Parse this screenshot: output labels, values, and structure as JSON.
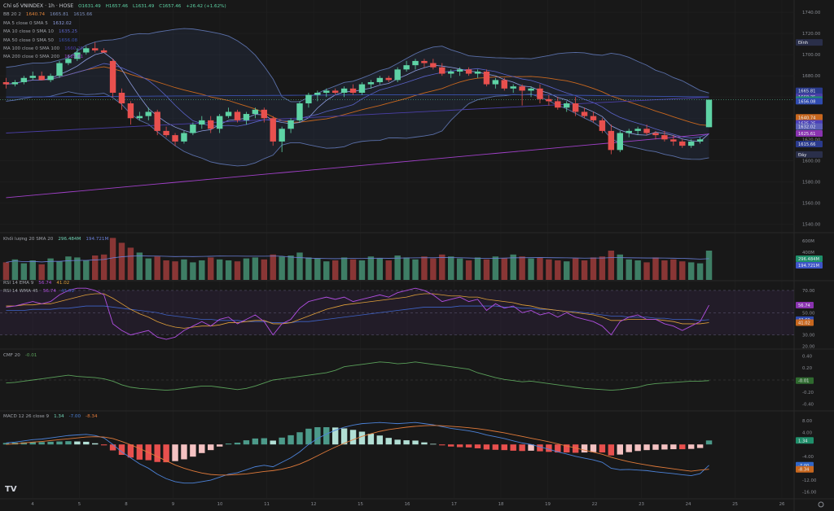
{
  "title_label": "Chỉ số VNINDEX · 1h · HOSE",
  "ohlc": {
    "o": "O1631.49",
    "h": "H1657.46",
    "l": "L1631.49",
    "c": "C1657.46",
    "chg": "+26.42 (+1.62%)"
  },
  "legends": [
    {
      "label": "BB 20 2",
      "vals": [
        {
          "t": "1640.74",
          "c": "#e0833a"
        },
        {
          "t": "1665.81",
          "c": "#7d8fbd"
        },
        {
          "t": "1615.66",
          "c": "#7d8fbd"
        }
      ]
    },
    {
      "label": "MA 5 close 0 SMA 5",
      "vals": [
        {
          "t": "1632.02",
          "c": "#8e9de0"
        }
      ]
    },
    {
      "label": "MA 10 close 0 SMA 10",
      "vals": [
        {
          "t": "1635.25",
          "c": "#5a63c8"
        }
      ]
    },
    {
      "label": "MA 50 close 0 SMA 50",
      "vals": [
        {
          "t": "1656.08",
          "c": "#3b52b0"
        }
      ]
    },
    {
      "label": "MA 100 close 0 SMA 100",
      "vals": [
        {
          "t": "1660.25",
          "c": "#4b3fa8"
        }
      ]
    },
    {
      "label": "MA 200 close 0 SMA 200",
      "vals": [
        {
          "t": "1625.61",
          "c": "#a040c8"
        }
      ]
    }
  ],
  "vol_legend": {
    "label": "Khối lượng 20 SMA 20",
    "vals": [
      {
        "t": "296.484M",
        "c": "#6fd3b5"
      },
      {
        "t": "194.721M",
        "c": "#6a7fd8"
      }
    ]
  },
  "rsi_legend": {
    "lines": [
      {
        "label": "RSI 14 EMA 9",
        "vals": [
          {
            "t": "56.74",
            "c": "#b04ee0"
          },
          {
            "t": "41.02",
            "c": "#e0a03a"
          }
        ]
      },
      {
        "label": "RSI 14 WMA 45",
        "vals": [
          {
            "t": "56.74",
            "c": "#b04ee0"
          },
          {
            "t": "43.69",
            "c": "#3f63c8"
          }
        ]
      }
    ]
  },
  "cmf_legend": {
    "label": "CMF 20",
    "vals": [
      {
        "t": "-0.01",
        "c": "#5aa05a"
      }
    ]
  },
  "macd_legend": {
    "label": "MACD 12 26 close 9",
    "vals": [
      {
        "t": "1.34",
        "c": "#6fd3b5"
      },
      {
        "t": "-7.00",
        "c": "#4c82d8"
      },
      {
        "t": "-8.34",
        "c": "#e07a3a"
      }
    ]
  },
  "tv_logo": "TV",
  "colors": {
    "up": "#5ed3a5",
    "down": "#e8504e",
    "bg": "#181818",
    "grid": "#262626"
  },
  "chart_data": {
    "type": "candlestick",
    "x_ticks": [
      "4",
      "5",
      "8",
      "9",
      "10",
      "11",
      "12",
      "15",
      "16",
      "17",
      "18",
      "19",
      "22",
      "23",
      "24",
      "25",
      "26"
    ],
    "price_axis": {
      "ticks": [
        1740,
        1720,
        1700,
        1680,
        1660,
        1640,
        1620,
        1600,
        1580,
        1560,
        1540
      ],
      "range": [
        1535,
        1750
      ]
    },
    "price_markers": [
      {
        "t": "Đỉnh",
        "v": 1711.49,
        "c": "#2a2f4a"
      },
      {
        "t": "1665.81",
        "v": 1665.81,
        "c": "#2a3a8c"
      },
      {
        "t": "1660.25",
        "v": 1660.25,
        "c": "#4b3fa8"
      },
      {
        "t": "1657.46",
        "v": 1657.46,
        "c": "#1f8f6a"
      },
      {
        "t": "1656.08",
        "v": 1656.08,
        "c": "#2f4bb0"
      },
      {
        "t": "1640.74",
        "v": 1640.74,
        "c": "#c8671e"
      },
      {
        "t": "1635.25",
        "v": 1635.25,
        "c": "#4b3fb8"
      },
      {
        "t": "1632.02",
        "v": 1632.02,
        "c": "#5b5fb8"
      },
      {
        "t": "1625.61",
        "v": 1625.61,
        "c": "#8a33b0"
      },
      {
        "t": "1615.66",
        "v": 1615.66,
        "c": "#2a3a8c"
      },
      {
        "t": "Đáy",
        "v": 1605.76,
        "c": "#2a2f4a"
      }
    ],
    "peak_value": "1711.49",
    "trough_value": "1605.76",
    "vol_axis": {
      "ticks": [
        "600M",
        "400M"
      ]
    },
    "vol_markers": [
      {
        "t": "296.484M",
        "c": "#1f8f6a"
      },
      {
        "t": "194.721M",
        "c": "#3f55c8"
      }
    ],
    "rsi_axis": {
      "ticks": [
        "70.00",
        "50.00",
        "30.00",
        "20.00"
      ],
      "range": [
        18,
        78
      ],
      "markers": [
        {
          "t": "56.74",
          "v": 56.74,
          "c": "#8a33b0"
        },
        {
          "t": "43.69",
          "v": 43.69,
          "c": "#2f4bb0"
        },
        {
          "t": "41.02",
          "v": 41.02,
          "c": "#c8671e"
        }
      ]
    },
    "cmf_axis": {
      "ticks": [
        "0.40",
        "0.20",
        "-0.20",
        "-0.40"
      ],
      "range": [
        -0.5,
        0.5
      ],
      "markers": [
        {
          "t": "-0.01",
          "v": -0.01,
          "c": "#2f6a2f"
        }
      ]
    },
    "macd_axis": {
      "ticks": [
        "8.00",
        "4.00",
        "-4.00",
        "-12.00",
        "-16.00"
      ],
      "range": [
        -18,
        11
      ],
      "markers": [
        {
          "t": "1.34",
          "v": 1.34,
          "c": "#1f8f6a"
        },
        {
          "t": "-7.00",
          "v": -7.0,
          "c": "#3066c8"
        },
        {
          "t": "-8.34",
          "v": -8.34,
          "c": "#c8671e"
        }
      ]
    },
    "candles": [
      [
        1674,
        1678,
        1668,
        1672
      ],
      [
        1672,
        1676,
        1670,
        1674
      ],
      [
        1674,
        1680,
        1672,
        1678
      ],
      [
        1678,
        1684,
        1676,
        1680
      ],
      [
        1680,
        1684,
        1676,
        1676
      ],
      [
        1676,
        1682,
        1674,
        1680
      ],
      [
        1680,
        1694,
        1678,
        1692
      ],
      [
        1692,
        1700,
        1690,
        1696
      ],
      [
        1696,
        1706,
        1694,
        1702
      ],
      [
        1702,
        1708,
        1700,
        1706
      ],
      [
        1706,
        1711.49,
        1702,
        1704
      ],
      [
        1704,
        1706,
        1702,
        1702
      ],
      [
        1694,
        1696,
        1660,
        1664
      ],
      [
        1664,
        1668,
        1648,
        1654
      ],
      [
        1654,
        1656,
        1634,
        1640
      ],
      [
        1640,
        1646,
        1638,
        1642
      ],
      [
        1642,
        1650,
        1638,
        1646
      ],
      [
        1646,
        1648,
        1624,
        1628
      ],
      [
        1628,
        1632,
        1622,
        1624
      ],
      [
        1624,
        1626,
        1614,
        1618
      ],
      [
        1618,
        1628,
        1616,
        1626
      ],
      [
        1626,
        1636,
        1624,
        1634
      ],
      [
        1634,
        1642,
        1630,
        1638
      ],
      [
        1638,
        1642,
        1626,
        1630
      ],
      [
        1630,
        1644,
        1626,
        1642
      ],
      [
        1642,
        1650,
        1640,
        1646
      ],
      [
        1646,
        1648,
        1636,
        1638
      ],
      [
        1638,
        1646,
        1634,
        1644
      ],
      [
        1644,
        1650,
        1640,
        1648
      ],
      [
        1648,
        1650,
        1636,
        1640
      ],
      [
        1640,
        1642,
        1614,
        1618
      ],
      [
        1618,
        1632,
        1608,
        1630
      ],
      [
        1630,
        1640,
        1626,
        1638
      ],
      [
        1638,
        1656,
        1636,
        1654
      ],
      [
        1654,
        1664,
        1650,
        1662
      ],
      [
        1662,
        1666,
        1656,
        1664
      ],
      [
        1664,
        1668,
        1660,
        1666
      ],
      [
        1666,
        1668,
        1662,
        1664
      ],
      [
        1664,
        1670,
        1660,
        1668
      ],
      [
        1668,
        1672,
        1662,
        1664
      ],
      [
        1664,
        1674,
        1662,
        1672
      ],
      [
        1672,
        1676,
        1668,
        1674
      ],
      [
        1674,
        1680,
        1672,
        1678
      ],
      [
        1678,
        1680,
        1674,
        1676
      ],
      [
        1676,
        1688,
        1674,
        1686
      ],
      [
        1686,
        1694,
        1684,
        1690
      ],
      [
        1690,
        1696,
        1686,
        1694
      ],
      [
        1694,
        1696,
        1688,
        1692
      ],
      [
        1692,
        1696,
        1686,
        1688
      ],
      [
        1688,
        1692,
        1680,
        1682
      ],
      [
        1682,
        1686,
        1678,
        1684
      ],
      [
        1684,
        1688,
        1680,
        1686
      ],
      [
        1686,
        1688,
        1680,
        1682
      ],
      [
        1682,
        1686,
        1678,
        1684
      ],
      [
        1684,
        1686,
        1670,
        1672
      ],
      [
        1672,
        1678,
        1668,
        1676
      ],
      [
        1676,
        1678,
        1666,
        1668
      ],
      [
        1668,
        1672,
        1664,
        1670
      ],
      [
        1670,
        1672,
        1652,
        1666
      ],
      [
        1666,
        1670,
        1660,
        1668
      ],
      [
        1668,
        1672,
        1654,
        1658
      ],
      [
        1658,
        1662,
        1652,
        1656
      ],
      [
        1656,
        1660,
        1648,
        1650
      ],
      [
        1650,
        1656,
        1646,
        1654
      ],
      [
        1654,
        1660,
        1642,
        1646
      ],
      [
        1646,
        1650,
        1640,
        1642
      ],
      [
        1642,
        1646,
        1636,
        1638
      ],
      [
        1638,
        1640,
        1626,
        1628
      ],
      [
        1628,
        1634,
        1606,
        1610
      ],
      [
        1610,
        1628,
        1608,
        1626
      ],
      [
        1626,
        1630,
        1622,
        1628
      ],
      [
        1628,
        1632,
        1624,
        1630
      ],
      [
        1630,
        1634,
        1624,
        1626
      ],
      [
        1626,
        1628,
        1620,
        1624
      ],
      [
        1624,
        1628,
        1618,
        1620
      ],
      [
        1620,
        1624,
        1614,
        1618
      ],
      [
        1618,
        1620,
        1612,
        1614
      ],
      [
        1614,
        1620,
        1612,
        1618
      ],
      [
        1618,
        1622,
        1616,
        1620
      ],
      [
        1631.49,
        1657.46,
        1631.49,
        1657.46
      ]
    ],
    "volumes": [
      180,
      210,
      170,
      200,
      160,
      220,
      190,
      240,
      230,
      200,
      250,
      260,
      430,
      380,
      330,
      280,
      220,
      240,
      200,
      190,
      210,
      180,
      200,
      230,
      210,
      200,
      190,
      220,
      230,
      210,
      260,
      240,
      250,
      280,
      230,
      220,
      190,
      200,
      230,
      210,
      200,
      240,
      220,
      200,
      250,
      230,
      210,
      240,
      220,
      260,
      240,
      220,
      200,
      230,
      210,
      240,
      220,
      260,
      240,
      220,
      230,
      210,
      200,
      190,
      220,
      200,
      230,
      240,
      300,
      260,
      210,
      200,
      180,
      230,
      200,
      210,
      190,
      180,
      170,
      300
    ],
    "rsi": [
      55,
      56,
      58,
      60,
      58,
      60,
      66,
      70,
      72,
      72,
      70,
      66,
      40,
      34,
      30,
      32,
      34,
      28,
      26,
      28,
      34,
      38,
      42,
      38,
      44,
      46,
      40,
      44,
      48,
      42,
      30,
      40,
      44,
      54,
      60,
      62,
      64,
      62,
      64,
      60,
      62,
      64,
      66,
      64,
      68,
      70,
      72,
      70,
      66,
      60,
      62,
      64,
      60,
      62,
      52,
      58,
      54,
      56,
      50,
      52,
      48,
      50,
      46,
      50,
      46,
      44,
      42,
      38,
      30,
      42,
      46,
      48,
      44,
      44,
      40,
      38,
      34,
      38,
      42,
      56.74
    ],
    "rsi_ema": [
      56,
      56,
      57,
      57,
      58,
      58,
      60,
      62,
      64,
      66,
      67,
      67,
      63,
      58,
      53,
      49,
      46,
      42,
      39,
      37,
      36,
      37,
      38,
      38,
      39,
      41,
      41,
      42,
      43,
      43,
      40,
      40,
      41,
      44,
      47,
      50,
      53,
      55,
      57,
      58,
      59,
      60,
      61,
      62,
      63,
      64,
      66,
      67,
      67,
      66,
      65,
      65,
      64,
      64,
      62,
      61,
      60,
      59,
      57,
      56,
      54,
      53,
      52,
      51,
      50,
      49,
      48,
      46,
      43,
      43,
      44,
      44,
      44,
      44,
      43,
      42,
      40,
      40,
      40,
      41.02
    ],
    "rsi_wma": [
      52,
      52,
      52,
      53,
      53,
      53,
      54,
      54,
      55,
      56,
      56,
      56,
      55,
      54,
      53,
      52,
      51,
      50,
      48,
      47,
      46,
      45,
      44,
      44,
      43,
      43,
      43,
      42,
      42,
      42,
      41,
      41,
      41,
      42,
      42,
      43,
      44,
      45,
      46,
      47,
      48,
      49,
      50,
      51,
      52,
      53,
      54,
      55,
      55,
      55,
      55,
      56,
      56,
      56,
      56,
      56,
      55,
      55,
      54,
      54,
      53,
      53,
      52,
      51,
      51,
      50,
      49,
      48,
      47,
      47,
      46,
      46,
      46,
      45,
      45,
      44,
      44,
      44,
      43,
      43.69
    ],
    "cmf": [
      -0.05,
      -0.04,
      -0.02,
      0.0,
      0.02,
      0.04,
      0.06,
      0.08,
      0.06,
      0.05,
      0.04,
      0.02,
      -0.02,
      -0.08,
      -0.12,
      -0.14,
      -0.15,
      -0.16,
      -0.17,
      -0.16,
      -0.14,
      -0.12,
      -0.1,
      -0.1,
      -0.12,
      -0.14,
      -0.16,
      -0.14,
      -0.1,
      -0.05,
      0.0,
      0.02,
      0.04,
      0.06,
      0.08,
      0.1,
      0.12,
      0.16,
      0.22,
      0.24,
      0.26,
      0.28,
      0.3,
      0.29,
      0.27,
      0.28,
      0.3,
      0.28,
      0.26,
      0.24,
      0.22,
      0.2,
      0.18,
      0.12,
      0.08,
      0.04,
      0.01,
      -0.01,
      -0.03,
      -0.02,
      -0.04,
      -0.06,
      -0.08,
      -0.1,
      -0.12,
      -0.14,
      -0.15,
      -0.16,
      -0.17,
      -0.16,
      -0.14,
      -0.12,
      -0.08,
      -0.06,
      -0.05,
      -0.04,
      -0.03,
      -0.02,
      -0.02,
      -0.01
    ],
    "macd": [
      0.5,
      0.8,
      1.2,
      1.6,
      1.8,
      2.2,
      2.6,
      3.0,
      3.2,
      3.4,
      3.0,
      2.2,
      0.0,
      -2.5,
      -4.5,
      -6.5,
      -8.0,
      -10.0,
      -11.5,
      -12.5,
      -13.0,
      -13.0,
      -12.5,
      -12.0,
      -11.0,
      -10.0,
      -9.5,
      -8.5,
      -7.5,
      -7.0,
      -7.5,
      -6.0,
      -4.5,
      -2.5,
      0.0,
      2.0,
      3.5,
      4.8,
      5.8,
      6.5,
      7.0,
      7.2,
      7.4,
      7.2,
      7.0,
      7.2,
      7.4,
      7.0,
      6.6,
      6.0,
      5.4,
      5.0,
      4.6,
      4.0,
      3.2,
      2.6,
      2.0,
      1.2,
      0.5,
      0.0,
      -0.8,
      -1.6,
      -2.5,
      -3.2,
      -4.0,
      -4.6,
      -5.2,
      -6.0,
      -8.0,
      -8.5,
      -8.4,
      -8.6,
      -8.8,
      -9.2,
      -9.5,
      -9.8,
      -10.2,
      -10.5,
      -9.8,
      -7.0
    ],
    "macd_signal": [
      0.0,
      0.2,
      0.5,
      0.8,
      1.0,
      1.3,
      1.6,
      1.9,
      2.2,
      2.5,
      2.6,
      2.5,
      2.0,
      1.0,
      -0.1,
      -1.4,
      -2.7,
      -4.1,
      -5.5,
      -6.9,
      -8.0,
      -8.9,
      -9.6,
      -10.1,
      -10.3,
      -10.3,
      -10.1,
      -9.9,
      -9.5,
      -9.1,
      -8.8,
      -8.3,
      -7.6,
      -6.6,
      -5.3,
      -3.8,
      -2.3,
      -0.9,
      0.4,
      1.6,
      2.7,
      3.6,
      4.4,
      5.0,
      5.4,
      5.8,
      6.1,
      6.3,
      6.4,
      6.3,
      6.1,
      5.9,
      5.6,
      5.3,
      4.9,
      4.4,
      3.9,
      3.3,
      2.7,
      2.1,
      1.5,
      0.9,
      0.2,
      -0.5,
      -1.2,
      -1.9,
      -2.6,
      -3.3,
      -4.3,
      -5.1,
      -5.8,
      -6.4,
      -6.9,
      -7.4,
      -7.8,
      -8.2,
      -8.6,
      -9.0,
      -8.6,
      -8.34
    ],
    "macd_hist": [
      0.5,
      0.6,
      0.7,
      0.8,
      0.8,
      0.9,
      1.0,
      1.1,
      1.0,
      0.9,
      0.4,
      -0.3,
      -2.0,
      -3.5,
      -4.4,
      -5.1,
      -5.3,
      -5.9,
      -6.0,
      -5.6,
      -5.0,
      -4.1,
      -2.9,
      -1.9,
      -0.7,
      0.3,
      0.6,
      1.4,
      2.0,
      2.1,
      1.3,
      2.3,
      3.1,
      4.1,
      5.3,
      5.8,
      5.8,
      5.7,
      5.4,
      4.9,
      4.3,
      3.6,
      3.0,
      2.2,
      1.6,
      1.4,
      1.3,
      0.7,
      0.2,
      -0.3,
      -0.7,
      -0.9,
      -1.0,
      -1.3,
      -1.7,
      -1.8,
      -1.9,
      -2.1,
      -2.2,
      -2.1,
      -2.3,
      -2.5,
      -2.7,
      -2.7,
      -2.8,
      -2.7,
      -2.6,
      -2.7,
      -3.7,
      -3.4,
      -2.6,
      -2.2,
      -1.9,
      -1.8,
      -1.7,
      -1.6,
      -1.6,
      -1.5,
      -1.2,
      1.34
    ]
  }
}
